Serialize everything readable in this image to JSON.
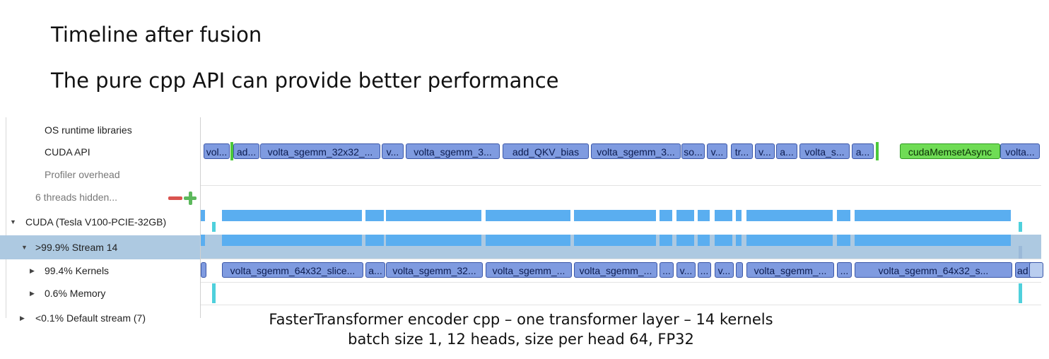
{
  "slide": {
    "title": "Timeline after fusion",
    "subtitle": "The pure cpp API can provide better performance"
  },
  "tree": {
    "os_runtime": "OS runtime libraries",
    "cuda_api": "CUDA API",
    "profiler_overhead": "Profiler overhead",
    "threads_hidden": "6 threads hidden...",
    "cuda_device": "CUDA (Tesla V100-PCIE-32GB)",
    "stream": ">99.9% Stream 14",
    "kernels": "99.4% Kernels",
    "memory": "0.6% Memory",
    "default_stream": "<0.1% Default stream (7)"
  },
  "cuda_api_row": [
    {
      "label": "vol...",
      "color": "#7f9be0"
    },
    {
      "label": "ad...",
      "color": "#7f9be0"
    },
    {
      "label": "volta_sgemm_32x32_...",
      "color": "#7f9be0"
    },
    {
      "label": "v...",
      "color": "#7f9be0"
    },
    {
      "label": "volta_sgemm_3...",
      "color": "#7f9be0"
    },
    {
      "label": "add_QKV_bias",
      "color": "#7f9be0"
    },
    {
      "label": "volta_sgemm_3...",
      "color": "#7f9be0"
    },
    {
      "label": "so...",
      "color": "#7f9be0"
    },
    {
      "label": "v...",
      "color": "#7f9be0"
    },
    {
      "label": "tr...",
      "color": "#7f9be0"
    },
    {
      "label": "v...",
      "color": "#7f9be0"
    },
    {
      "label": "a...",
      "color": "#7f9be0"
    },
    {
      "label": "volta_s...",
      "color": "#7f9be0"
    },
    {
      "label": "a...",
      "color": "#7f9be0"
    },
    {
      "label": "cudaMemsetAsync",
      "color": "#6fdc55"
    },
    {
      "label": "volta...",
      "color": "#7f9be0"
    }
  ],
  "kernels_row": [
    {
      "label": ""
    },
    {
      "label": "volta_sgemm_64x32_slice..."
    },
    {
      "label": "a..."
    },
    {
      "label": "volta_sgemm_32..."
    },
    {
      "label": "volta_sgemm_..."
    },
    {
      "label": "volta_sgemm_..."
    },
    {
      "label": "..."
    },
    {
      "label": "v..."
    },
    {
      "label": "..."
    },
    {
      "label": "v..."
    },
    {
      "label": ""
    },
    {
      "label": "volta_sgemm_..."
    },
    {
      "label": "..."
    },
    {
      "label": "volta_sgemm_64x32_s..."
    },
    {
      "label": "ad..."
    },
    {
      "label": ""
    }
  ],
  "caption": {
    "line1": "FasterTransformer encoder cpp – one transformer layer – 14 kernels",
    "line2": "batch size 1, 12 heads, size per head 64, FP32"
  },
  "colors": {
    "kernel_bar": "#7f9be0",
    "memset_bar": "#6fdc55",
    "utilization": "#5aaef0",
    "memory_tick": "#4fd0dc",
    "selected_row": "#adc9e1"
  }
}
